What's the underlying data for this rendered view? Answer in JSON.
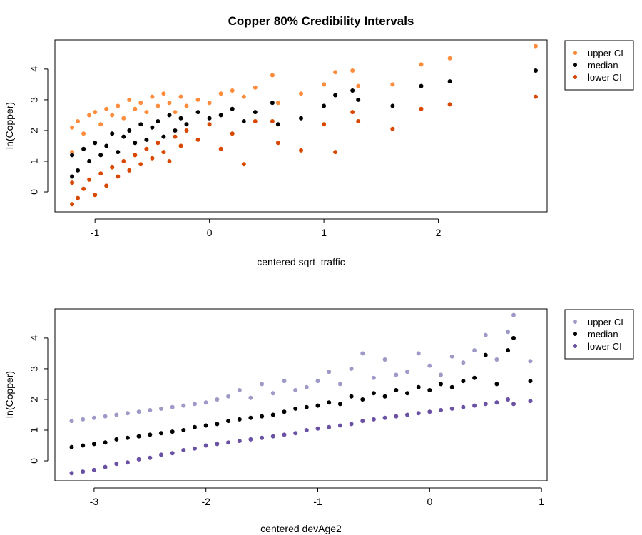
{
  "title": "Copper 80% Credibility Intervals",
  "chart_data": [
    {
      "type": "scatter",
      "xlabel": "centered sqrt_traffic",
      "ylabel": "ln(Copper)",
      "xlim": [
        -1.35,
        2.95
      ],
      "ylim": [
        -0.65,
        4.95
      ],
      "xticks": [
        "-1",
        "0",
        "1",
        "2"
      ],
      "xtick_values": [
        -1,
        0,
        1,
        2
      ],
      "yticks": [
        "0",
        "1",
        "2",
        "3",
        "4"
      ],
      "ytick_values": [
        0,
        1,
        2,
        3,
        4
      ],
      "legend_position": "top-right, outside plot",
      "series": [
        {
          "name": "upper CI",
          "color": "#fd8d3c",
          "x": [
            -1.2,
            -1.2,
            -1.15,
            -1.1,
            -1.05,
            -1.0,
            -0.95,
            -0.9,
            -0.85,
            -0.8,
            -0.75,
            -0.7,
            -0.65,
            -0.6,
            -0.55,
            -0.5,
            -0.45,
            -0.4,
            -0.35,
            -0.3,
            -0.25,
            -0.2,
            -0.1,
            0.0,
            0.1,
            0.2,
            0.3,
            0.4,
            0.55,
            0.6,
            0.8,
            1.0,
            1.1,
            1.25,
            1.3,
            1.6,
            1.85,
            2.1,
            2.85
          ],
          "y": [
            1.3,
            2.1,
            2.3,
            1.9,
            2.5,
            2.6,
            2.2,
            2.7,
            2.5,
            2.8,
            2.4,
            3.0,
            2.7,
            2.9,
            2.6,
            3.1,
            2.8,
            3.2,
            2.9,
            2.6,
            3.1,
            2.8,
            3.0,
            2.9,
            3.2,
            3.3,
            3.1,
            3.4,
            3.8,
            2.9,
            3.2,
            3.5,
            3.9,
            3.95,
            3.45,
            3.5,
            4.15,
            4.35,
            4.75
          ]
        },
        {
          "name": "median",
          "color": "#000000",
          "x": [
            -1.2,
            -1.2,
            -1.15,
            -1.1,
            -1.05,
            -1.0,
            -0.95,
            -0.9,
            -0.85,
            -0.8,
            -0.75,
            -0.7,
            -0.65,
            -0.6,
            -0.55,
            -0.5,
            -0.45,
            -0.4,
            -0.35,
            -0.3,
            -0.25,
            -0.2,
            -0.1,
            0.0,
            0.1,
            0.2,
            0.3,
            0.4,
            0.55,
            0.6,
            0.8,
            1.0,
            1.1,
            1.25,
            1.3,
            1.6,
            1.85,
            2.1,
            2.85
          ],
          "y": [
            0.5,
            1.2,
            0.7,
            1.4,
            1.0,
            1.6,
            1.2,
            1.5,
            1.9,
            1.3,
            1.8,
            2.0,
            1.6,
            2.2,
            1.7,
            2.1,
            2.3,
            1.8,
            2.5,
            2.0,
            2.4,
            2.2,
            2.6,
            2.4,
            2.5,
            2.7,
            2.3,
            2.6,
            2.9,
            2.2,
            2.4,
            2.8,
            3.15,
            3.3,
            3.0,
            2.8,
            3.45,
            3.6,
            3.95
          ]
        },
        {
          "name": "lower CI",
          "color": "#d94801",
          "x": [
            -1.2,
            -1.2,
            -1.15,
            -1.1,
            -1.05,
            -1.0,
            -0.95,
            -0.9,
            -0.85,
            -0.8,
            -0.75,
            -0.7,
            -0.65,
            -0.6,
            -0.55,
            -0.5,
            -0.45,
            -0.4,
            -0.35,
            -0.3,
            -0.25,
            -0.2,
            -0.1,
            0.0,
            0.1,
            0.2,
            0.3,
            0.4,
            0.55,
            0.6,
            0.8,
            1.0,
            1.1,
            1.25,
            1.3,
            1.6,
            1.85,
            2.1,
            2.85
          ],
          "y": [
            -0.4,
            0.3,
            -0.2,
            0.1,
            0.4,
            -0.1,
            0.6,
            0.2,
            0.8,
            0.5,
            1.0,
            0.7,
            1.2,
            0.9,
            1.4,
            1.1,
            1.6,
            1.3,
            1.0,
            1.8,
            1.5,
            2.0,
            1.7,
            2.2,
            1.4,
            1.9,
            0.9,
            2.3,
            2.3,
            1.6,
            1.35,
            2.2,
            1.3,
            2.6,
            2.3,
            2.05,
            2.7,
            2.85,
            3.1
          ]
        }
      ]
    },
    {
      "type": "scatter",
      "xlabel": "centered devAge2",
      "ylabel": "ln(Copper)",
      "xlim": [
        -3.35,
        1.05
      ],
      "ylim": [
        -0.65,
        4.95
      ],
      "xticks": [
        "-3",
        "-2",
        "-1",
        "0",
        "1"
      ],
      "xtick_values": [
        -3,
        -2,
        -1,
        0,
        1
      ],
      "yticks": [
        "0",
        "1",
        "2",
        "3",
        "4"
      ],
      "ytick_values": [
        0,
        1,
        2,
        3,
        4
      ],
      "legend_position": "top-right, outside plot",
      "series": [
        {
          "name": "upper CI",
          "color": "#9e9ac8",
          "x": [
            -3.2,
            -3.1,
            -3.0,
            -2.9,
            -2.8,
            -2.7,
            -2.6,
            -2.5,
            -2.4,
            -2.3,
            -2.2,
            -2.1,
            -2.0,
            -1.9,
            -1.8,
            -1.7,
            -1.6,
            -1.5,
            -1.4,
            -1.3,
            -1.2,
            -1.1,
            -1.0,
            -0.9,
            -0.8,
            -0.7,
            -0.6,
            -0.5,
            -0.4,
            -0.3,
            -0.2,
            -0.1,
            0.0,
            0.1,
            0.2,
            0.3,
            0.4,
            0.5,
            0.6,
            0.7,
            0.75,
            0.9
          ],
          "y": [
            1.3,
            1.35,
            1.4,
            1.45,
            1.5,
            1.55,
            1.6,
            1.65,
            1.7,
            1.75,
            1.8,
            1.85,
            1.9,
            2.0,
            2.1,
            2.3,
            2.05,
            2.5,
            2.2,
            2.6,
            2.3,
            2.4,
            2.6,
            2.9,
            2.5,
            3.0,
            3.5,
            2.7,
            3.3,
            2.8,
            2.9,
            3.5,
            3.1,
            2.8,
            3.4,
            3.2,
            3.6,
            4.1,
            3.3,
            4.2,
            4.75,
            3.25
          ]
        },
        {
          "name": "median",
          "color": "#000000",
          "x": [
            -3.2,
            -3.1,
            -3.0,
            -2.9,
            -2.8,
            -2.7,
            -2.6,
            -2.5,
            -2.4,
            -2.3,
            -2.2,
            -2.1,
            -2.0,
            -1.9,
            -1.8,
            -1.7,
            -1.6,
            -1.5,
            -1.4,
            -1.3,
            -1.2,
            -1.1,
            -1.0,
            -0.9,
            -0.8,
            -0.7,
            -0.6,
            -0.5,
            -0.4,
            -0.3,
            -0.2,
            -0.1,
            0.0,
            0.1,
            0.2,
            0.3,
            0.4,
            0.5,
            0.6,
            0.7,
            0.75,
            0.9
          ],
          "y": [
            0.45,
            0.5,
            0.55,
            0.6,
            0.7,
            0.75,
            0.8,
            0.85,
            0.9,
            0.95,
            1.0,
            1.1,
            1.15,
            1.2,
            1.3,
            1.35,
            1.4,
            1.45,
            1.5,
            1.6,
            1.7,
            1.75,
            1.8,
            1.9,
            1.85,
            2.1,
            2.0,
            2.2,
            2.1,
            2.3,
            2.2,
            2.4,
            2.3,
            2.5,
            2.4,
            2.6,
            2.7,
            3.45,
            2.5,
            3.6,
            4.0,
            2.6
          ]
        },
        {
          "name": "lower CI",
          "color": "#6a51a3",
          "x": [
            -3.2,
            -3.1,
            -3.0,
            -2.9,
            -2.8,
            -2.7,
            -2.6,
            -2.5,
            -2.4,
            -2.3,
            -2.2,
            -2.1,
            -2.0,
            -1.9,
            -1.8,
            -1.7,
            -1.6,
            -1.5,
            -1.4,
            -1.3,
            -1.2,
            -1.1,
            -1.0,
            -0.9,
            -0.8,
            -0.7,
            -0.6,
            -0.5,
            -0.4,
            -0.3,
            -0.2,
            -0.1,
            0.0,
            0.1,
            0.2,
            0.3,
            0.4,
            0.5,
            0.6,
            0.7,
            0.75,
            0.9
          ],
          "y": [
            -0.4,
            -0.35,
            -0.3,
            -0.2,
            -0.1,
            -0.05,
            0.05,
            0.1,
            0.2,
            0.25,
            0.35,
            0.4,
            0.5,
            0.55,
            0.6,
            0.65,
            0.7,
            0.75,
            0.8,
            0.85,
            0.9,
            1.0,
            1.05,
            1.1,
            1.15,
            1.2,
            1.3,
            1.35,
            1.4,
            1.45,
            1.5,
            1.55,
            1.6,
            1.65,
            1.7,
            1.75,
            1.8,
            1.85,
            1.9,
            2.0,
            1.85,
            1.95
          ]
        }
      ]
    }
  ]
}
